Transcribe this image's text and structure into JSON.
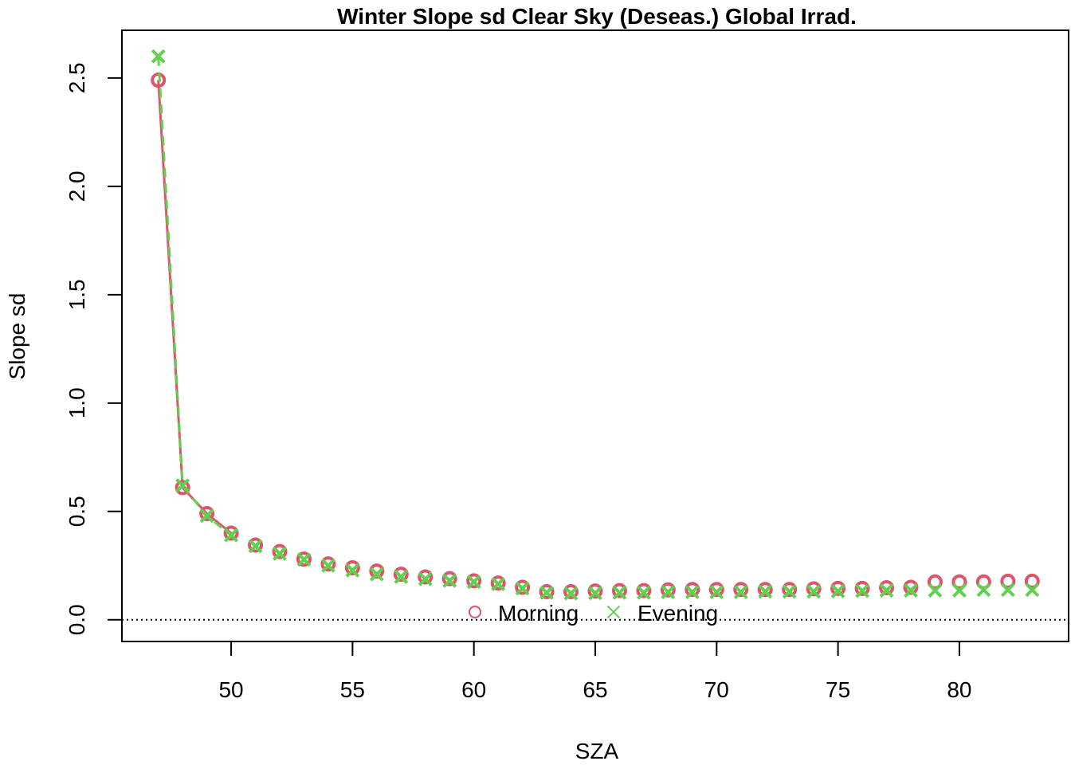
{
  "chart_data": {
    "type": "scatter",
    "title": "Winter Slope sd Clear Sky (Deseas.) Global Irrad.",
    "xlabel": "SZA",
    "ylabel": "Slope sd",
    "xlim": [
      45.5,
      84.5
    ],
    "ylim": [
      -0.1,
      2.72
    ],
    "xticks": [
      50,
      55,
      60,
      65,
      70,
      75,
      80
    ],
    "xtick_labels": [
      "50",
      "55",
      "60",
      "65",
      "70",
      "75",
      "80"
    ],
    "yticks": [
      0.0,
      0.5,
      1.0,
      1.5,
      2.0,
      2.5
    ],
    "ytick_labels": [
      "0.0",
      "0.5",
      "1.0",
      "1.5",
      "2.0",
      "2.5"
    ],
    "reference_line": {
      "y": 0,
      "style": "dotted"
    },
    "x": [
      47,
      48,
      49,
      50,
      51,
      52,
      53,
      54,
      55,
      56,
      57,
      58,
      59,
      60,
      61,
      62,
      63,
      64,
      65,
      66,
      67,
      68,
      69,
      70,
      71,
      72,
      73,
      74,
      75,
      76,
      77,
      78,
      79,
      80,
      81,
      82,
      83
    ],
    "series": [
      {
        "name": "Morning",
        "marker": "circle",
        "color": "#DF536B",
        "values": [
          2.49,
          0.61,
          0.49,
          0.4,
          0.345,
          0.315,
          0.28,
          0.258,
          0.24,
          0.225,
          0.21,
          0.198,
          0.19,
          0.18,
          0.17,
          0.15,
          0.13,
          0.13,
          0.133,
          0.135,
          0.135,
          0.138,
          0.14,
          0.14,
          0.14,
          0.14,
          0.14,
          0.143,
          0.145,
          0.145,
          0.148,
          0.15,
          0.175,
          0.175,
          0.175,
          0.178,
          0.178
        ]
      },
      {
        "name": "Evening",
        "marker": "cross",
        "color": "#61D04F",
        "values": [
          2.6,
          0.62,
          0.48,
          0.39,
          0.34,
          0.305,
          0.278,
          0.25,
          0.228,
          0.21,
          0.198,
          0.188,
          0.18,
          0.175,
          0.165,
          0.145,
          0.125,
          0.122,
          0.123,
          0.125,
          0.125,
          0.128,
          0.128,
          0.128,
          0.128,
          0.13,
          0.13,
          0.13,
          0.132,
          0.133,
          0.135,
          0.135,
          0.135,
          0.135,
          0.138,
          0.138,
          0.138
        ]
      }
    ],
    "legend": {
      "placement": "bottom-center",
      "entries": [
        {
          "label": "Morning",
          "marker": "circle",
          "color": "#DF536B"
        },
        {
          "label": "Evening",
          "marker": "cross",
          "color": "#61D04F"
        }
      ]
    }
  }
}
